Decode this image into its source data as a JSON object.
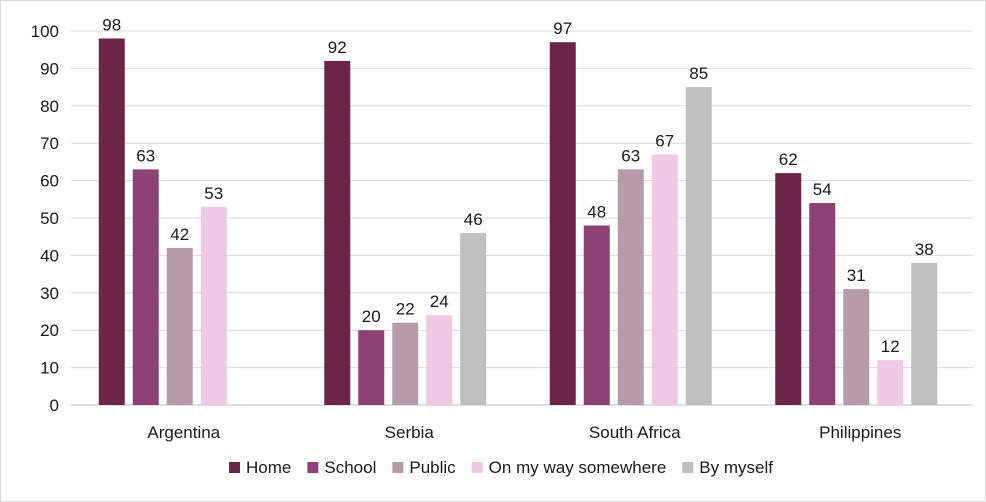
{
  "chart_data": {
    "type": "bar",
    "categories": [
      "Argentina",
      "Serbia",
      "South Africa",
      "Philippines"
    ],
    "series": [
      {
        "name": "Home",
        "color": "#6d2449",
        "values": [
          98,
          92,
          97,
          62
        ]
      },
      {
        "name": "School",
        "color": "#8e4174",
        "values": [
          63,
          20,
          48,
          54
        ]
      },
      {
        "name": "Public",
        "color": "#b79bab",
        "values": [
          42,
          22,
          63,
          31
        ]
      },
      {
        "name": "On my way somewhere",
        "color": "#f1c9e6",
        "values": [
          53,
          24,
          67,
          12
        ]
      },
      {
        "name": "By myself",
        "color": "#bfbfbf",
        "values": [
          null,
          46,
          85,
          38
        ]
      }
    ],
    "ylim": [
      0,
      100
    ],
    "yticks": [
      0,
      10,
      20,
      30,
      40,
      50,
      60,
      70,
      80,
      90,
      100
    ],
    "grid": true,
    "legend": "bottom"
  }
}
